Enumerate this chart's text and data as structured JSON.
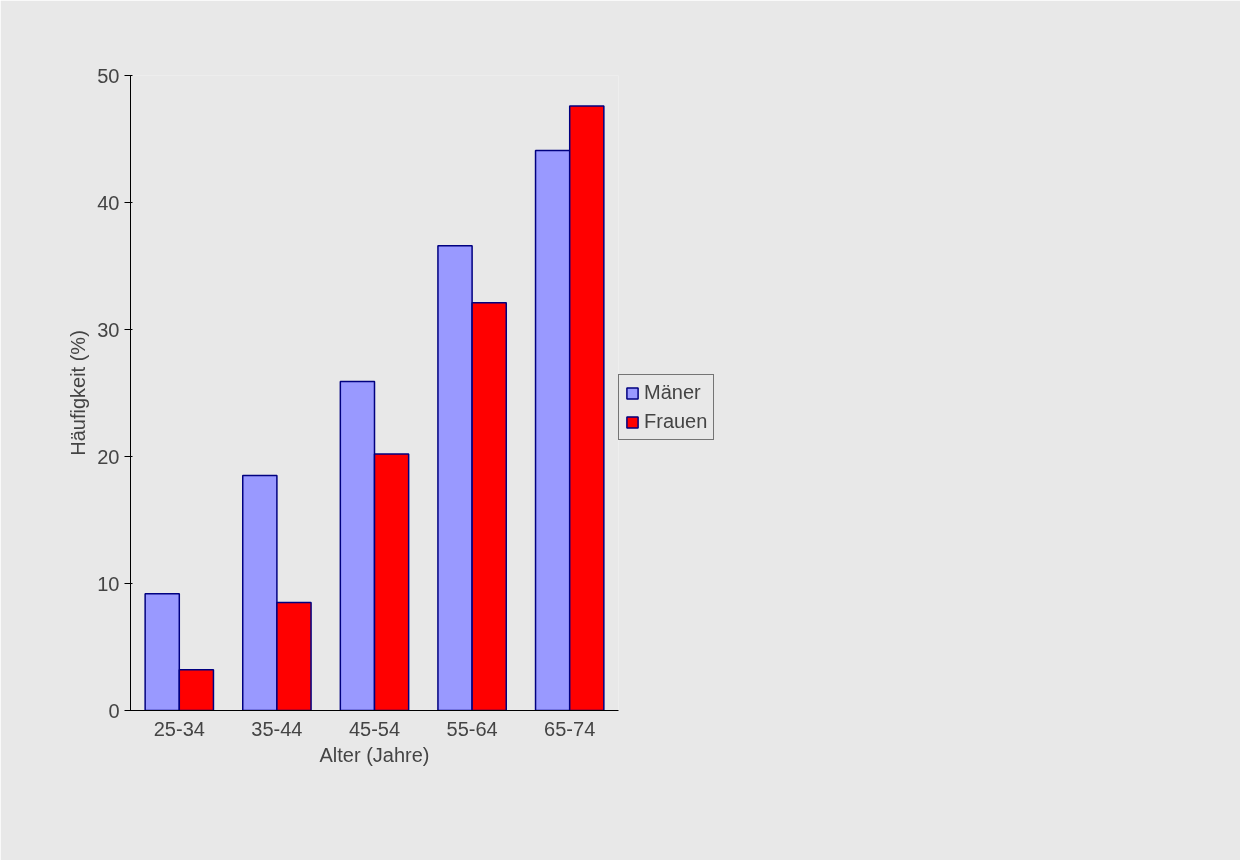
{
  "chart_data": {
    "type": "bar",
    "xlabel": "Alter (Jahre)",
    "ylabel": "Häufigkeit (%)",
    "categories": [
      "25-34",
      "35-44",
      "45-54",
      "55-64",
      "65-74"
    ],
    "series": [
      {
        "name": "Mäner",
        "color": "#9999ff",
        "values": [
          9.2,
          18.5,
          25.9,
          36.6,
          44.1
        ]
      },
      {
        "name": "Frauen",
        "color": "#ff0000",
        "values": [
          3.2,
          8.5,
          20.2,
          32.1,
          47.6
        ]
      }
    ],
    "ylim": [
      0,
      50
    ],
    "yticks": [
      0,
      10,
      20,
      30,
      40,
      50
    ],
    "legend": "right"
  }
}
